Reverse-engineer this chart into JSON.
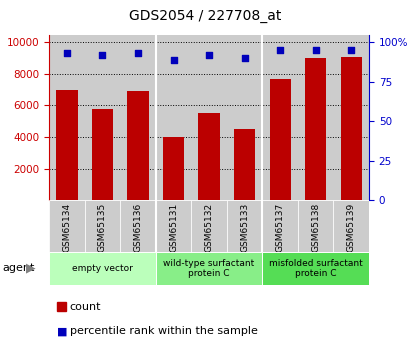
{
  "title": "GDS2054 / 227708_at",
  "categories": [
    "GSM65134",
    "GSM65135",
    "GSM65136",
    "GSM65131",
    "GSM65132",
    "GSM65133",
    "GSM65137",
    "GSM65138",
    "GSM65139"
  ],
  "counts": [
    7000,
    5800,
    6900,
    4000,
    5500,
    4500,
    7700,
    9000,
    9100
  ],
  "percentiles": [
    93,
    92,
    93,
    89,
    92,
    90,
    95,
    95,
    95
  ],
  "groups": [
    {
      "label": "empty vector",
      "indices": [
        0,
        1,
        2
      ],
      "color": "#bbffbb"
    },
    {
      "label": "wild-type surfactant\nprotein C",
      "indices": [
        3,
        4,
        5
      ],
      "color": "#88ee88"
    },
    {
      "label": "misfolded surfactant\nprotein C",
      "indices": [
        6,
        7,
        8
      ],
      "color": "#55dd55"
    }
  ],
  "bar_color": "#bb0000",
  "dot_color": "#0000bb",
  "left_yticks": [
    2000,
    4000,
    6000,
    8000,
    10000
  ],
  "right_ytick_vals": [
    0,
    25,
    50,
    75,
    100
  ],
  "right_ytick_labels": [
    "0",
    "25",
    "50",
    "75",
    "100%"
  ],
  "left_ylim": [
    0,
    10500
  ],
  "right_ylim": [
    0,
    105
  ],
  "left_ycolor": "#cc0000",
  "right_ycolor": "#0000cc",
  "plot_bg_color": "#cccccc",
  "cell_bg_color": "#cccccc",
  "agent_label": "agent",
  "legend_count_label": "count",
  "legend_pct_label": "percentile rank within the sample"
}
